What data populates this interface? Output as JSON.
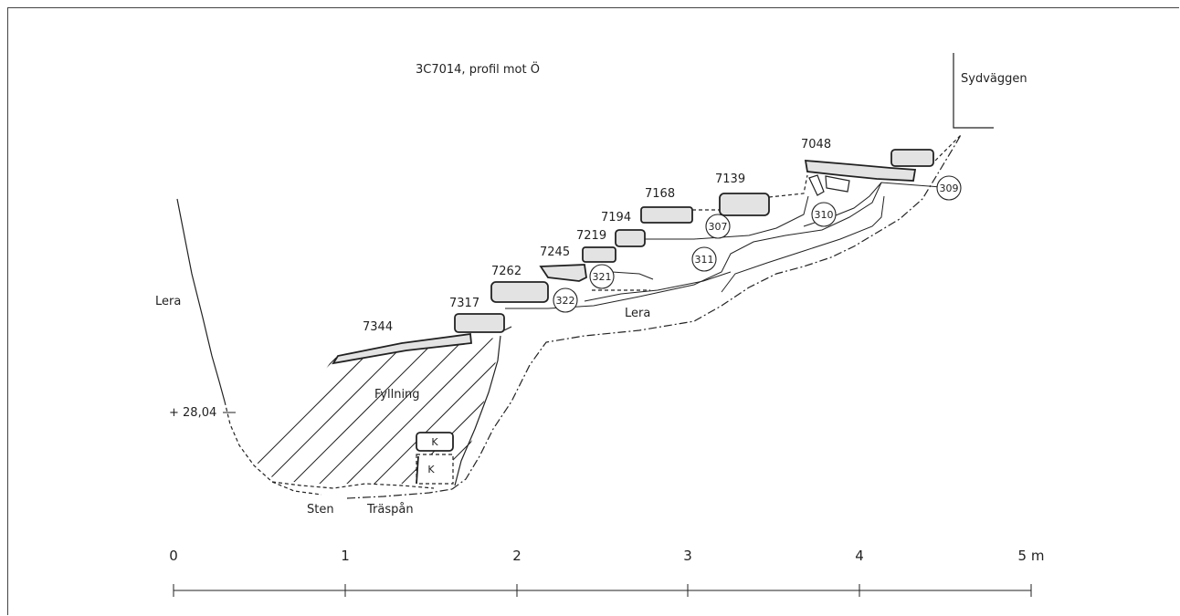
{
  "title": "3C7014, profil mot Ö",
  "wall_label": "Sydväggen",
  "layers": {
    "lera_left": "Lera",
    "lera_mid": "Lera",
    "fyllning": "Fyllning",
    "sten": "Sten",
    "traspan": "Träspån"
  },
  "level_label": "+ 28,04",
  "stones": [
    "7344",
    "7317",
    "7262",
    "7245",
    "7219",
    "7194",
    "7168",
    "7139",
    "7048"
  ],
  "contexts": [
    "322",
    "321",
    "311",
    "307",
    "310",
    "309"
  ],
  "samples": [
    "K",
    "K"
  ],
  "scale": {
    "ticks": [
      "0",
      "1",
      "2",
      "3",
      "4",
      "5 m"
    ]
  },
  "colors": {
    "stone_fill": "#e3e3e3",
    "line": "#222222"
  }
}
